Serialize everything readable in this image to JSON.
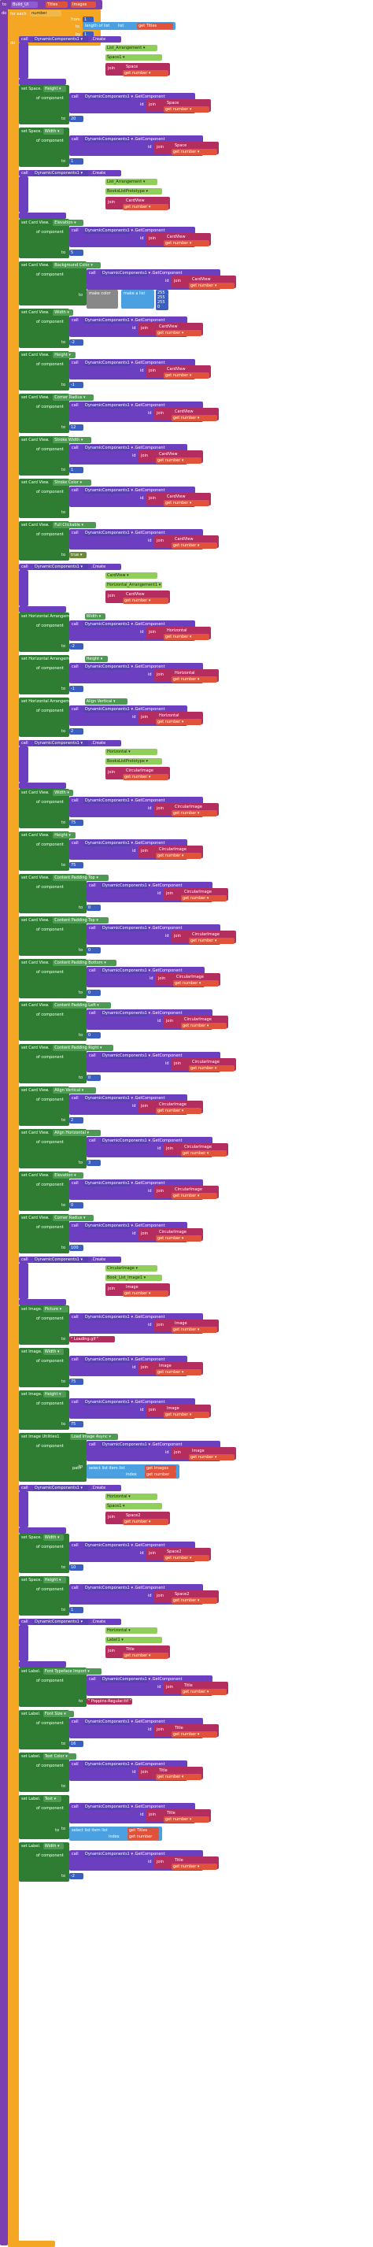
{
  "workspace": {
    "background": "#ffffff"
  },
  "colors": {
    "procedure": "#7b3fb0",
    "loop": "#f5a623",
    "setter": "#2f7d32",
    "component": "#5a3fb0",
    "call": "#6b3fc0",
    "variable": "#e0533a",
    "text": "#b32d5e",
    "math": "#3b5fc0",
    "list": "#4aa0e0",
    "logic": "#6a8a3a",
    "color_white": "#ffffff",
    "color_gray": "#888888"
  },
  "header": {
    "to_label": "to",
    "procedure_name": "Build_UI",
    "param1": "Titles",
    "param2": "Images",
    "do_label": "do"
  },
  "loop": {
    "for_each_label": "for each",
    "variable": "number",
    "from_label": "from",
    "from_value": "1",
    "to_label": "to",
    "length_label": "length of list",
    "list_label": "list",
    "get_label": "get",
    "list_var": "Titles",
    "by_label": "by",
    "by_value": "1",
    "do_label": "do"
  },
  "common": {
    "call": "call",
    "create": "Create",
    "in": "in",
    "component_name": "componentName",
    "id": "id",
    "get_component": "GetComponent",
    "of_component": "of component",
    "to": "to",
    "get": "get",
    "join": "join",
    "number": "number",
    "set": "set",
    "dyn": "DynamicComponents1",
    "path": "path"
  },
  "statements": [
    {
      "t": "create",
      "in": "List_Arrangement",
      "comp": "Space1",
      "id": "Space"
    },
    {
      "t": "set",
      "comp": "Space",
      "prop": "Height",
      "id": "Space",
      "val": "20"
    },
    {
      "t": "set",
      "comp": "Space",
      "prop": "Width",
      "id": "Space",
      "val": "1"
    },
    {
      "t": "create",
      "in": "List_Arrangement",
      "comp": "BooksListPrototype",
      "id": "CardView"
    },
    {
      "t": "set",
      "comp": "Card View",
      "prop": "Elevation",
      "id": "CardView",
      "val": "5"
    },
    {
      "t": "setc",
      "comp": "Card View",
      "prop": "Background Color",
      "id": "CardView",
      "make": "make a list",
      "nums": [
        "255",
        "255",
        "255",
        "0"
      ]
    },
    {
      "t": "set",
      "comp": "Card View",
      "prop": "Width",
      "id": "CardView",
      "val": "-2"
    },
    {
      "t": "set",
      "comp": "Card View",
      "prop": "Height",
      "id": "CardView",
      "val": "-1"
    },
    {
      "t": "set",
      "comp": "Card View",
      "prop": "Corner Radius",
      "id": "CardView",
      "val": "12"
    },
    {
      "t": "set",
      "comp": "Card View",
      "prop": "Stroke Width",
      "id": "CardView",
      "val": "1"
    },
    {
      "t": "setw",
      "comp": "Card View",
      "prop": "Stroke Color",
      "id": "CardView"
    },
    {
      "t": "setb",
      "comp": "Card View",
      "prop": "Full Clickable",
      "id": "CardView",
      "val": "true"
    },
    {
      "t": "create",
      "in": "CardView",
      "comp": "Horizontal_Arrangement1",
      "id": "CardView"
    },
    {
      "t": "set",
      "comp": "Horizontal Arrangement",
      "prop": "Width",
      "id": "Horizontal",
      "val": "-2"
    },
    {
      "t": "set",
      "comp": "Horizontal Arrangement",
      "prop": "Height",
      "id": "Horizontal",
      "val": "-1"
    },
    {
      "t": "set",
      "comp": "Horizontal Arrangement",
      "prop": "Align Vertical",
      "id": "Horizontal",
      "val": "2"
    },
    {
      "t": "create",
      "in": "Horizontal",
      "comp": "BooksListPrototype",
      "id": "CircularImage"
    },
    {
      "t": "set",
      "comp": "Card View",
      "prop": "Width",
      "id": "CircularImage",
      "val": "75"
    },
    {
      "t": "set",
      "comp": "Card View",
      "prop": "Height",
      "id": "CircularImage",
      "val": "75"
    },
    {
      "t": "set",
      "comp": "Card View",
      "prop": "Content Padding Top",
      "id": "CircularImage",
      "val": "0"
    },
    {
      "t": "set",
      "comp": "Card View",
      "prop": "Content Padding Top",
      "id": "CircularImage",
      "val": "0"
    },
    {
      "t": "set",
      "comp": "Card View",
      "prop": "Content Padding Bottom",
      "id": "CircularImage",
      "val": "0"
    },
    {
      "t": "set",
      "comp": "Card View",
      "prop": "Content Padding Left",
      "id": "CircularImage",
      "val": "0"
    },
    {
      "t": "set",
      "comp": "Card View",
      "prop": "Content Padding Right",
      "id": "CircularImage",
      "val": "0"
    },
    {
      "t": "set",
      "comp": "Card View",
      "prop": "Align Vertical",
      "id": "CircularImage",
      "val": "2"
    },
    {
      "t": "set",
      "comp": "Card View",
      "prop": "Align Horizontal",
      "id": "CircularImage",
      "val": "3"
    },
    {
      "t": "set",
      "comp": "Card View",
      "prop": "Elevation",
      "id": "CircularImage",
      "val": "0"
    },
    {
      "t": "set",
      "comp": "Card View",
      "prop": "Corner Radius",
      "id": "CircularImage",
      "val": "100"
    },
    {
      "t": "create",
      "in": "CircularImage",
      "comp": "Book_List_Image1",
      "id": "Image"
    },
    {
      "t": "sett",
      "comp": "Image",
      "prop": "Picture",
      "id": "Image",
      "val": "Loading.gif"
    },
    {
      "t": "set",
      "comp": "Image",
      "prop": "Width",
      "id": "Image",
      "val": "75"
    },
    {
      "t": "set",
      "comp": "Image",
      "prop": "Height",
      "id": "Image",
      "val": "75"
    },
    {
      "t": "load",
      "comp": "Image Utilities1",
      "prop": "Load Image Async",
      "id": "Image",
      "list": "Images"
    },
    {
      "t": "create",
      "in": "Horizontal",
      "comp": "Space1",
      "id": "Space2"
    },
    {
      "t": "set",
      "comp": "Space",
      "prop": "Width",
      "id": "Space2",
      "val": "10"
    },
    {
      "t": "set",
      "comp": "Space",
      "prop": "Height",
      "id": "Space2",
      "val": "1"
    },
    {
      "t": "create",
      "in": "Horizontal",
      "comp": "Label1",
      "id": "Title"
    },
    {
      "t": "sett",
      "comp": "Label",
      "prop": "Font Typeface Import",
      "id": "Title",
      "val": "Poppins-Regular.ttf"
    },
    {
      "t": "set",
      "comp": "Label",
      "prop": "Font Size",
      "id": "Title",
      "val": "16"
    },
    {
      "t": "setw",
      "comp": "Label",
      "prop": "Text Color",
      "id": "Title"
    },
    {
      "t": "label",
      "comp": "Label",
      "prop": "Text",
      "id": "Title",
      "list": "Titles"
    },
    {
      "t": "set",
      "comp": "Label",
      "prop": "Width",
      "id": "Title",
      "val": "-2"
    }
  ]
}
